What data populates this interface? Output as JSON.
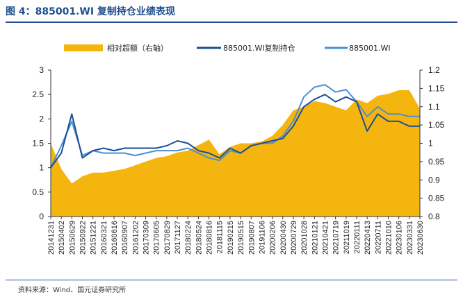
{
  "figure": {
    "title": "图 4：885001.WI 复制持仓业绩表现",
    "source": "资料来源：Wind、国元证券研究所"
  },
  "colors": {
    "area": "#f5b50f",
    "portfolio": "#1a4e96",
    "index": "#4a8fd4",
    "rule": "#1f4e8c"
  },
  "chart_data": {
    "type": "line",
    "legend_placement": "top",
    "grid": false,
    "x_ticks": [
      "20141231",
      "20150402",
      "20150629",
      "20150922",
      "20151221",
      "20160321",
      "20160616",
      "20160907",
      "20161202",
      "20170309",
      "20170605",
      "20170829",
      "20171127",
      "20180224",
      "20180524",
      "20180816",
      "20181115",
      "20190215",
      "20190515",
      "20190807",
      "20191106",
      "20200206",
      "20200430",
      "20200729",
      "20201028",
      "20210121",
      "20210421",
      "20210719",
      "20211019",
      "20220111",
      "20220413",
      "20220711",
      "20221010",
      "20230106",
      "20230331",
      "20230630"
    ],
    "y_left": {
      "lim": [
        0,
        3
      ],
      "ticks": [
        "0",
        "0.5",
        "1",
        "1.5",
        "2",
        "2.5",
        "3"
      ]
    },
    "y_right": {
      "lim": [
        0.8,
        1.2
      ],
      "ticks": [
        "0.8",
        "0.85",
        "0.9",
        "0.95",
        "1",
        "1.05",
        "1.1",
        "1.15",
        "1.2"
      ]
    },
    "series": [
      {
        "name": "相对超额（右轴）",
        "kind": "area",
        "axis": "right",
        "values": [
          1.0,
          0.93,
          0.89,
          0.91,
          0.92,
          0.92,
          0.925,
          0.93,
          0.94,
          0.95,
          0.96,
          0.965,
          0.975,
          0.98,
          0.995,
          1.01,
          0.97,
          0.99,
          1.0,
          1.0,
          1.005,
          1.02,
          1.05,
          1.09,
          1.1,
          1.115,
          1.11,
          1.1,
          1.09,
          1.12,
          1.11,
          1.13,
          1.135,
          1.145,
          1.145,
          1.095
        ]
      },
      {
        "name": "885001.WI复制持仓",
        "kind": "line",
        "axis": "left",
        "values": [
          1.0,
          1.3,
          2.1,
          1.2,
          1.35,
          1.4,
          1.35,
          1.4,
          1.4,
          1.4,
          1.4,
          1.45,
          1.55,
          1.5,
          1.35,
          1.3,
          1.2,
          1.4,
          1.3,
          1.45,
          1.5,
          1.55,
          1.6,
          1.85,
          2.25,
          2.4,
          2.5,
          2.35,
          2.45,
          2.35,
          1.75,
          2.1,
          1.95,
          1.95,
          1.85,
          1.85
        ]
      },
      {
        "name": "885001.WI",
        "kind": "line",
        "axis": "left",
        "values": [
          1.0,
          1.45,
          1.95,
          1.25,
          1.35,
          1.3,
          1.3,
          1.3,
          1.25,
          1.3,
          1.35,
          1.35,
          1.35,
          1.4,
          1.3,
          1.2,
          1.15,
          1.35,
          1.3,
          1.45,
          1.5,
          1.5,
          1.65,
          1.95,
          2.45,
          2.65,
          2.7,
          2.55,
          2.6,
          2.35,
          2.05,
          2.25,
          2.1,
          2.1,
          2.05,
          2.05
        ]
      }
    ]
  }
}
